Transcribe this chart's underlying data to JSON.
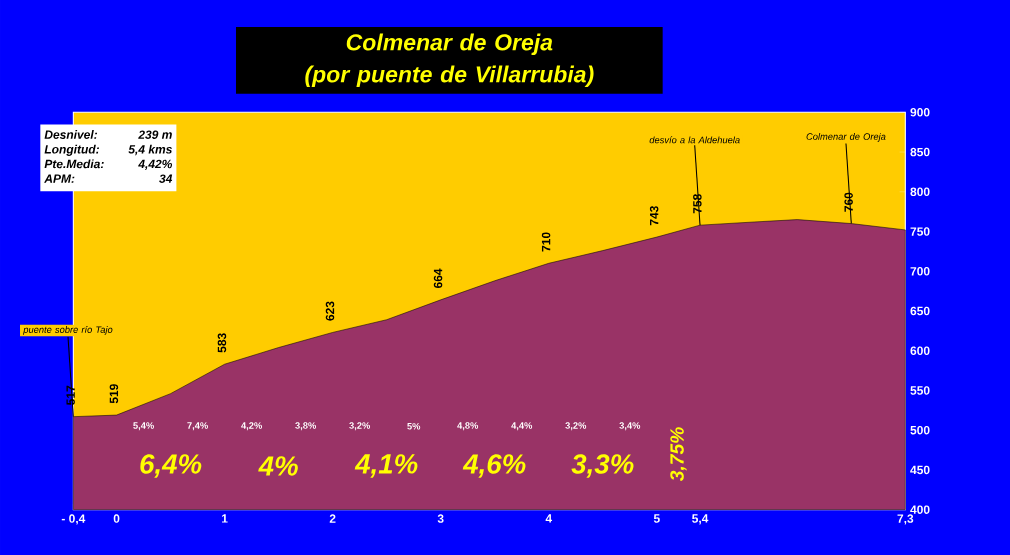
{
  "chart_data": {
    "type": "area",
    "title": "Colmenar de Oreja",
    "subtitle": "(por puente de Villarrubia)",
    "x": [
      -0.4,
      0,
      0.5,
      1,
      1.5,
      2,
      2.5,
      3,
      3.5,
      4,
      4.5,
      5,
      5.4,
      5.9,
      6.3,
      6.8,
      7.3
    ],
    "series": [
      {
        "color": "#993366",
        "values": [
          517,
          519,
          546,
          583,
          604,
          623,
          639,
          664,
          688,
          710,
          726,
          743,
          758,
          762,
          765,
          760,
          752
        ],
        "value_labels": [
          "517",
          "519",
          null,
          "583",
          null,
          "623",
          null,
          "664",
          null,
          "710",
          null,
          "743",
          "758",
          null,
          null,
          "760",
          null
        ]
      }
    ],
    "xlim": [
      -0.4,
      7.3
    ],
    "xticks": [
      {
        "value": -0.4,
        "label": "- 0,4"
      },
      0,
      1,
      2,
      3,
      4,
      5,
      {
        "value": 5.4,
        "label": "5,4"
      },
      {
        "value": 7.3,
        "label": "7,3"
      }
    ],
    "ylim": [
      400,
      900
    ],
    "yticks": [
      400,
      450,
      500,
      550,
      600,
      650,
      700,
      750,
      800,
      850,
      900
    ],
    "grid": false,
    "annotations": [
      "Desnivel:",
      "239 m",
      "Longitud:",
      "5,4 kms",
      "Pte.Media:",
      "4,42%",
      "APM:",
      "34",
      "5,4%",
      "7,4%",
      "4,2%",
      "3,8%",
      "3,2%",
      "5%",
      "4,8%",
      "4,4%",
      "3,2%",
      "3,4%",
      "6,4%",
      "4%",
      "4,1%",
      "4,6%",
      "3,3%",
      "3,75%",
      {
        "text": "puente sobre río Tajo",
        "x": -0.4,
        "y": 517
      },
      {
        "text": "desvío a la Aldehuela",
        "x": 5.4,
        "y": 758
      },
      {
        "text": "Colmenar de Oreja",
        "x": 6.8,
        "y": 760
      }
    ]
  }
}
